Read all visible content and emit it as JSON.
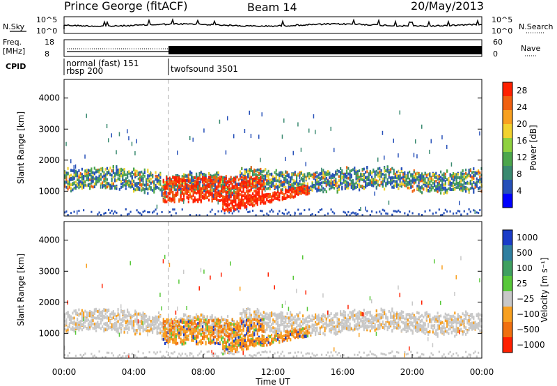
{
  "header": {
    "station": "Prince George (fitACF)",
    "beam": "Beam 14",
    "date": "20/May/2013"
  },
  "top_panels": {
    "nsky_label": "N.Sky",
    "nsky_ticks": [
      "10^5",
      "10^0"
    ],
    "nsearch_label": "N.Search",
    "freq_label_1": "Freq.",
    "freq_label_2": "[MHz]",
    "freq_ticks": [
      "18",
      "8"
    ],
    "nave_label": "Nave",
    "nave_ticks": [
      "60",
      "0"
    ],
    "cpid_label": "CPID",
    "cpid_segments": [
      {
        "line1": "normal (fast) 151",
        "line2": "rbsp 200",
        "start_hour": 0
      },
      {
        "line1": "twofsound 3501",
        "line2": "",
        "start_hour": 6
      }
    ]
  },
  "chart_data": [
    {
      "type": "heatmap",
      "name": "power-panel",
      "ylabel": "Slant Range [km]",
      "xlabel": "",
      "xlim": [
        0,
        24
      ],
      "ylim": [
        200,
        4600
      ],
      "yticks": [
        "1000",
        "2000",
        "3000",
        "4000"
      ],
      "ytick_values": [
        1000,
        2000,
        3000,
        4000
      ],
      "colorbar": {
        "label": "Power [dB]",
        "ticks": [
          "4",
          "8",
          "12",
          "16",
          "20",
          "24",
          "28"
        ],
        "range": [
          0,
          30
        ],
        "colors": [
          "#0000ff",
          "#2650b8",
          "#3a8a70",
          "#4ca64c",
          "#8fd13f",
          "#f2d22e",
          "#f8a020",
          "#f06010",
          "#ff2000"
        ]
      }
    },
    {
      "type": "heatmap",
      "name": "velocity-panel",
      "ylabel": "Slant Range [km]",
      "xlabel": "Time UT",
      "xlim": [
        0,
        24
      ],
      "ylim": [
        200,
        4600
      ],
      "yticks": [
        "1000",
        "2000",
        "3000",
        "4000"
      ],
      "ytick_values": [
        1000,
        2000,
        3000,
        4000
      ],
      "xticks": [
        "00:00",
        "04:00",
        "08:00",
        "12:00",
        "16:00",
        "20:00",
        "00:00"
      ],
      "xtick_values": [
        0,
        4,
        8,
        12,
        16,
        20,
        24
      ],
      "colorbar": {
        "label": "Velocity [m s⁻¹]",
        "ticks": [
          "1000",
          "500",
          "100",
          "25",
          "−25",
          "−100",
          "−500",
          "−1000"
        ],
        "colors": [
          "#1a3cc8",
          "#2f7fa0",
          "#3fa060",
          "#58c83a",
          "#c8c8c8",
          "#f8a020",
          "#f07010",
          "#ff2000"
        ]
      }
    }
  ]
}
